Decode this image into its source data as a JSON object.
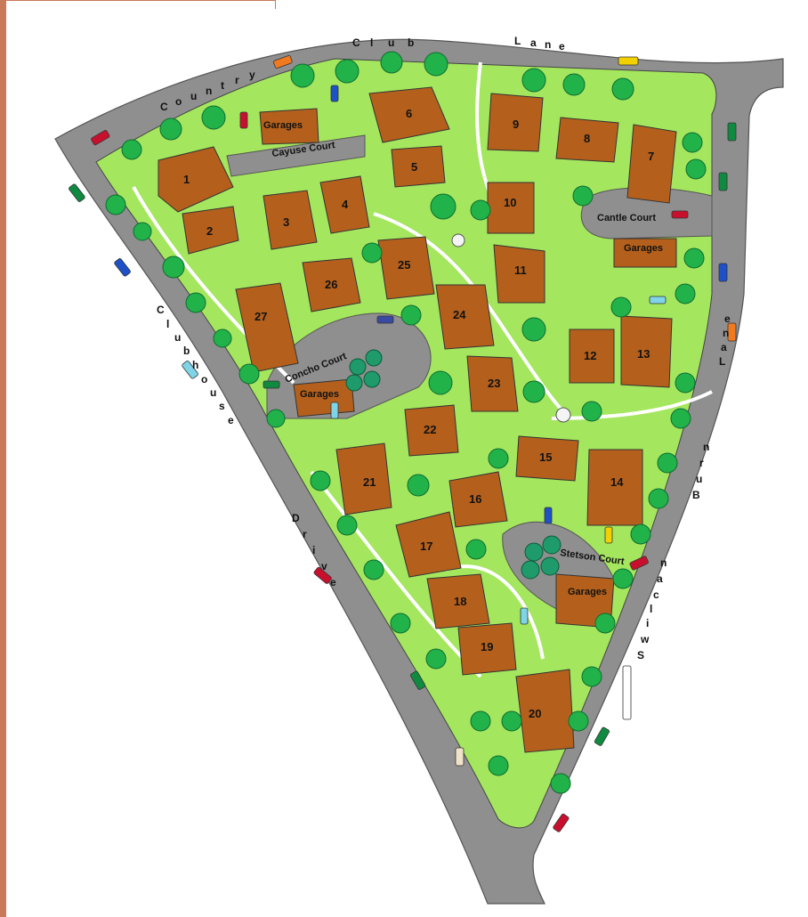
{
  "streets": {
    "country_club": [
      "C",
      "o",
      "u",
      "n",
      "t",
      "r",
      "y",
      " ",
      "C",
      "l",
      "u",
      "b",
      " ",
      "L",
      "a",
      "n",
      "e"
    ],
    "clubhouse": [
      "C",
      "l",
      "u",
      "b",
      "h",
      "o",
      "u",
      "s",
      "e"
    ],
    "drive": [
      "D",
      "r",
      "i",
      "v",
      "e"
    ],
    "swilcan_burn": [
      "S",
      "w",
      "i",
      "l",
      "c",
      "a",
      "n",
      " ",
      "B",
      "u",
      "r",
      "n"
    ],
    "lane": [
      "L",
      "a",
      "n",
      "e"
    ]
  },
  "courts": {
    "cayuse": "Cayuse Court",
    "cantle": "Cantle Court",
    "concho": "Concho Court",
    "stetson": "Stetson Court"
  },
  "garages_label": "Garages",
  "houses": [
    "1",
    "2",
    "3",
    "4",
    "5",
    "6",
    "7",
    "8",
    "9",
    "10",
    "11",
    "12",
    "13",
    "14",
    "15",
    "16",
    "17",
    "18",
    "19",
    "20",
    "21",
    "22",
    "23",
    "24",
    "25",
    "26",
    "27"
  ],
  "colors": {
    "road": "#8f8f8f",
    "lawn": "#a4e65e",
    "roof": "#b4601c",
    "tree": "#22b24a",
    "tree_dark": "#0e7f3a",
    "path": "#f4f4f4",
    "frame": "#c8795a"
  }
}
